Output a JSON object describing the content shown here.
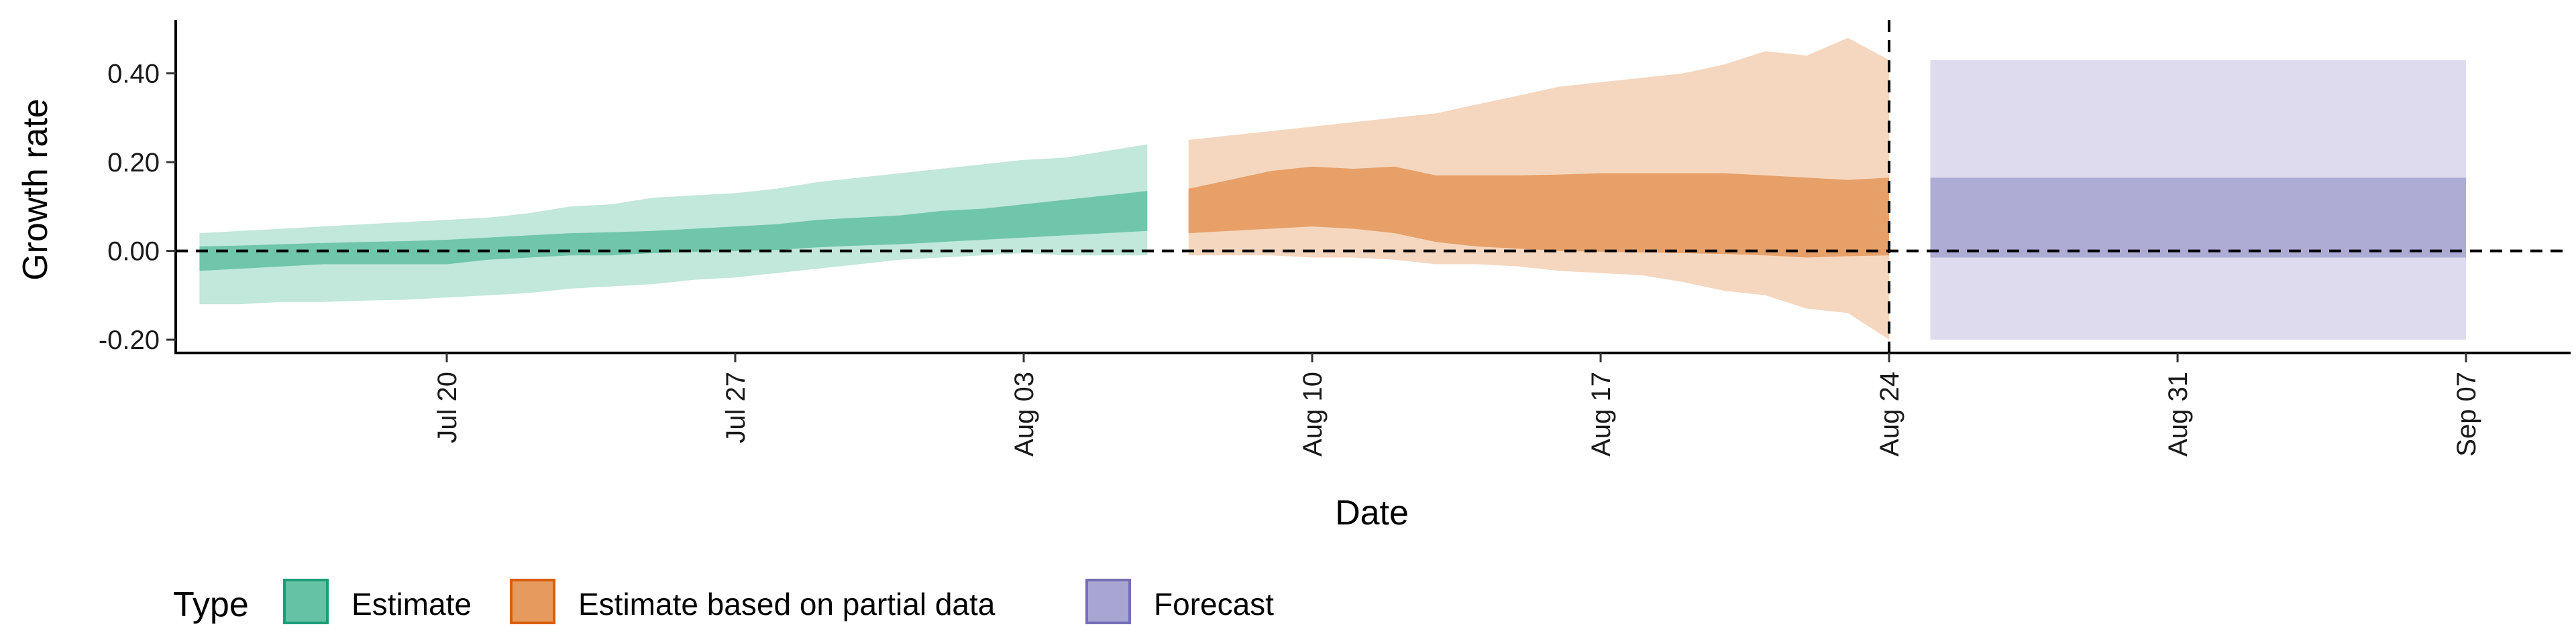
{
  "chart_data": {
    "type": "area",
    "title": "",
    "xlabel": "Date",
    "ylabel": "Growth rate",
    "x_ticks": [
      "Jul 20",
      "Jul 27",
      "Aug 03",
      "Aug 10",
      "Aug 17",
      "Aug 24",
      "Aug 31",
      "Sep 07"
    ],
    "y_ticks": [
      "-0.20",
      "0.00",
      "0.20",
      "0.40"
    ],
    "ylim": [
      -0.23,
      0.52
    ],
    "xlim": [
      "2020-07-11",
      "2020-09-08"
    ],
    "reference_lines": {
      "y": 0.0,
      "x": "2020-08-24"
    },
    "legend": {
      "title": "Type",
      "position": "bottom-left"
    },
    "grid": false,
    "series": [
      {
        "name": "Estimate",
        "color_fill": "#66c2a5",
        "color_border": "#1b9e77",
        "x": [
          "2020-07-14",
          "2020-07-15",
          "2020-07-16",
          "2020-07-17",
          "2020-07-18",
          "2020-07-19",
          "2020-07-20",
          "2020-07-21",
          "2020-07-22",
          "2020-07-23",
          "2020-07-24",
          "2020-07-25",
          "2020-07-26",
          "2020-07-27",
          "2020-07-28",
          "2020-07-29",
          "2020-07-30",
          "2020-07-31",
          "2020-08-01",
          "2020-08-02",
          "2020-08-03",
          "2020-08-04",
          "2020-08-05",
          "2020-08-06"
        ],
        "outer_lower": [
          -0.12,
          -0.12,
          -0.115,
          -0.115,
          -0.112,
          -0.11,
          -0.105,
          -0.1,
          -0.095,
          -0.085,
          -0.08,
          -0.075,
          -0.065,
          -0.06,
          -0.05,
          -0.04,
          -0.03,
          -0.02,
          -0.015,
          -0.01,
          -0.005,
          -0.01,
          -0.01,
          -0.01
        ],
        "outer_upper": [
          0.04,
          0.045,
          0.05,
          0.055,
          0.06,
          0.065,
          0.07,
          0.075,
          0.085,
          0.1,
          0.105,
          0.12,
          0.125,
          0.13,
          0.14,
          0.155,
          0.165,
          0.175,
          0.185,
          0.195,
          0.205,
          0.21,
          0.225,
          0.24
        ],
        "inner_lower": [
          -0.045,
          -0.04,
          -0.035,
          -0.03,
          -0.03,
          -0.03,
          -0.03,
          -0.02,
          -0.015,
          -0.01,
          -0.01,
          -0.005,
          -0.002,
          0.0,
          0.002,
          0.008,
          0.012,
          0.015,
          0.02,
          0.025,
          0.03,
          0.035,
          0.04,
          0.045
        ],
        "inner_upper": [
          0.01,
          0.012,
          0.015,
          0.018,
          0.02,
          0.022,
          0.025,
          0.03,
          0.035,
          0.04,
          0.042,
          0.045,
          0.05,
          0.055,
          0.06,
          0.07,
          0.075,
          0.08,
          0.09,
          0.095,
          0.105,
          0.115,
          0.125,
          0.135
        ]
      },
      {
        "name": "Estimate based on partial data",
        "color_fill": "#e69a5e",
        "color_border": "#d95f02",
        "x": [
          "2020-08-07",
          "2020-08-08",
          "2020-08-09",
          "2020-08-10",
          "2020-08-11",
          "2020-08-12",
          "2020-08-13",
          "2020-08-14",
          "2020-08-15",
          "2020-08-16",
          "2020-08-17",
          "2020-08-18",
          "2020-08-19",
          "2020-08-20",
          "2020-08-21",
          "2020-08-22",
          "2020-08-23",
          "2020-08-24"
        ],
        "outer_lower": [
          -0.01,
          -0.01,
          -0.01,
          -0.015,
          -0.015,
          -0.02,
          -0.03,
          -0.03,
          -0.035,
          -0.045,
          -0.05,
          -0.055,
          -0.07,
          -0.09,
          -0.1,
          -0.13,
          -0.14,
          -0.2
        ],
        "outer_upper": [
          0.25,
          0.26,
          0.27,
          0.28,
          0.29,
          0.3,
          0.31,
          0.33,
          0.35,
          0.37,
          0.38,
          0.39,
          0.4,
          0.42,
          0.45,
          0.44,
          0.48,
          0.43
        ],
        "inner_lower": [
          0.04,
          0.045,
          0.05,
          0.055,
          0.05,
          0.04,
          0.02,
          0.01,
          0.005,
          0.0,
          -0.002,
          -0.003,
          -0.005,
          -0.007,
          -0.01,
          -0.015,
          -0.012,
          -0.01
        ],
        "inner_upper": [
          0.14,
          0.16,
          0.18,
          0.19,
          0.185,
          0.19,
          0.17,
          0.17,
          0.17,
          0.172,
          0.175,
          0.175,
          0.175,
          0.175,
          0.17,
          0.165,
          0.16,
          0.165
        ]
      },
      {
        "name": "Forecast",
        "color_fill": "#a9a5d2",
        "color_border": "#7570b3",
        "x": [
          "2020-08-25",
          "2020-09-07"
        ],
        "outer_lower": [
          -0.2,
          -0.2
        ],
        "outer_upper": [
          0.43,
          0.43
        ],
        "inner_lower": [
          -0.015,
          -0.015
        ],
        "inner_upper": [
          0.165,
          0.165
        ]
      }
    ]
  }
}
